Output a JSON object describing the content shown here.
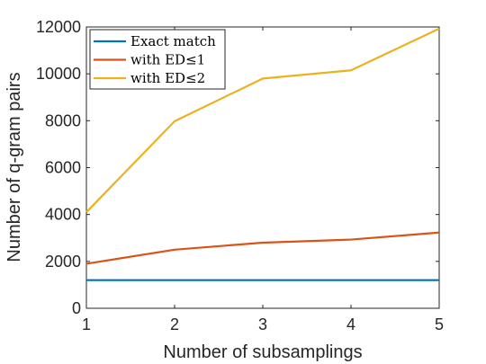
{
  "chart_data": {
    "type": "line",
    "x": [
      1,
      2,
      3,
      4,
      5
    ],
    "xlabel": "Number of subsamplings",
    "ylabel": "Number of q-gram pairs",
    "xlim": [
      1,
      5
    ],
    "ylim": [
      0,
      12000
    ],
    "xticks": [
      "1",
      "2",
      "3",
      "4",
      "5"
    ],
    "yticks": [
      "0",
      "2000",
      "4000",
      "6000",
      "8000",
      "10000",
      "12000"
    ],
    "grid": false,
    "legend_position": "top-left",
    "series": [
      {
        "name": "Exact match",
        "color": "#0072BD",
        "values": [
          1200,
          1200,
          1200,
          1200,
          1200
        ]
      },
      {
        "name": "with ED≤1",
        "color": "#D95319",
        "values": [
          1900,
          2500,
          2800,
          2930,
          3230
        ]
      },
      {
        "name": "with ED≤2",
        "color": "#EDB120",
        "values": [
          4100,
          7980,
          9800,
          10150,
          11930
        ]
      }
    ]
  }
}
